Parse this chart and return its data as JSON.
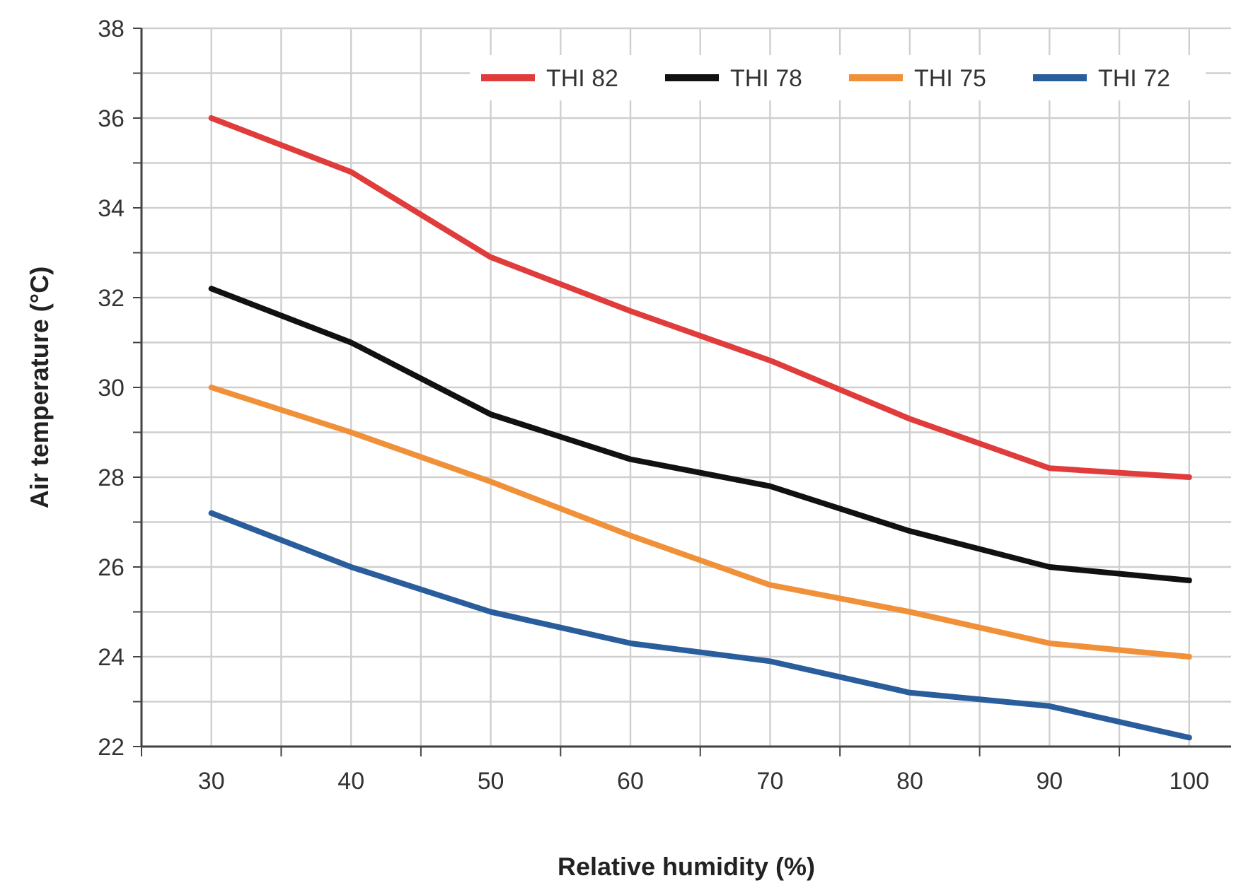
{
  "chart_data": {
    "type": "line",
    "xlabel": "Relative humidity (%)",
    "ylabel": "Air temperature (°C)",
    "x": [
      30,
      40,
      50,
      60,
      70,
      80,
      90,
      100
    ],
    "series": [
      {
        "name": "THI 82",
        "color": "#e03c3c",
        "values": [
          36.0,
          34.8,
          32.9,
          31.7,
          30.6,
          29.3,
          28.2,
          28.0
        ]
      },
      {
        "name": "THI 78",
        "color": "#111111",
        "values": [
          32.2,
          31.0,
          29.4,
          28.4,
          27.8,
          26.8,
          26.0,
          25.7
        ]
      },
      {
        "name": "THI 75",
        "color": "#f0913a",
        "values": [
          30.0,
          29.0,
          27.9,
          26.7,
          25.6,
          25.0,
          24.3,
          24.0
        ]
      },
      {
        "name": "THI 72",
        "color": "#2a5d9c",
        "values": [
          27.2,
          26.0,
          25.0,
          24.3,
          23.9,
          23.2,
          22.9,
          22.2
        ]
      }
    ],
    "xlim": [
      25,
      103
    ],
    "xticks": [
      {
        "value": 25,
        "label": null
      },
      30,
      {
        "value": 35,
        "label": null
      },
      40,
      {
        "value": 45,
        "label": null
      },
      50,
      {
        "value": 55,
        "label": null
      },
      60,
      {
        "value": 65,
        "label": null
      },
      70,
      {
        "value": 75,
        "label": null
      },
      80,
      {
        "value": 85,
        "label": null
      },
      90,
      {
        "value": 95,
        "label": null
      },
      100
    ],
    "ylim": [
      22,
      38
    ],
    "yticks": [
      22,
      {
        "value": 23,
        "label": null
      },
      24,
      {
        "value": 25,
        "label": null
      },
      26,
      {
        "value": 27,
        "label": null
      },
      28,
      {
        "value": 29,
        "label": null
      },
      30,
      {
        "value": 31,
        "label": null
      },
      32,
      {
        "value": 33,
        "label": null
      },
      34,
      {
        "value": 35,
        "label": null
      },
      36,
      {
        "value": 37,
        "label": null
      },
      38
    ],
    "grid": true,
    "legend": "top right",
    "line_style": "solid",
    "marker": "none"
  }
}
